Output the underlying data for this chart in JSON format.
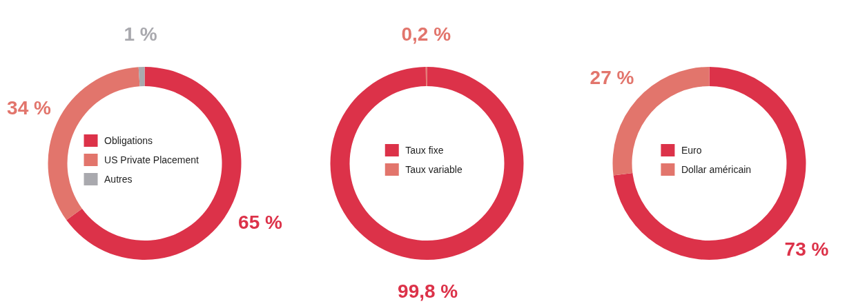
{
  "chart_data": [
    {
      "type": "donut",
      "categories": [
        "Obligations",
        "US Private Placement",
        "Autres"
      ],
      "values": [
        65,
        34,
        1
      ],
      "colors": [
        "#dc3249",
        "#e2756c",
        "#a9a9ae"
      ],
      "value_labels": [
        "65 %",
        "34 %",
        "1 %"
      ],
      "legend": "center"
    },
    {
      "type": "donut",
      "categories": [
        "Taux fixe",
        "Taux variable"
      ],
      "values": [
        99.8,
        0.2
      ],
      "colors": [
        "#dc3249",
        "#e2756c"
      ],
      "value_labels": [
        "99,8 %",
        "0,2 %"
      ],
      "legend": "center"
    },
    {
      "type": "donut",
      "categories": [
        "Euro",
        "Dollar américain"
      ],
      "values": [
        73,
        27
      ],
      "colors": [
        "#dc3249",
        "#e2756c"
      ],
      "value_labels": [
        "73 %",
        "27 %"
      ],
      "legend": "center"
    }
  ]
}
